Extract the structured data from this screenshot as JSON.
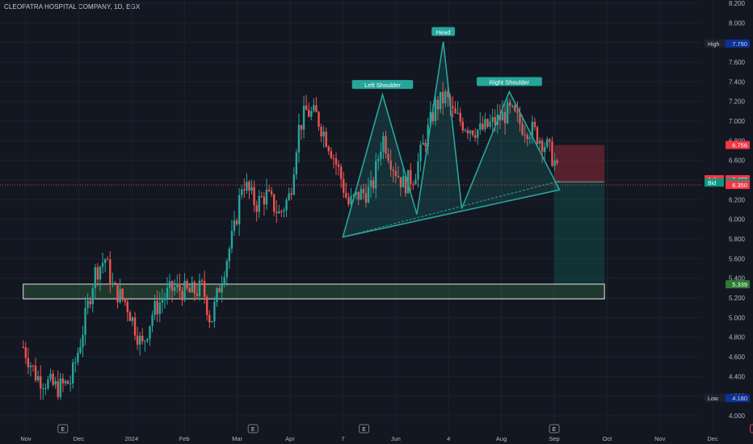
{
  "header": {
    "title": "CLEOPATRA HOSPITAL COMPANY, 1D, EGX"
  },
  "colors": {
    "up": "#26a69a",
    "down": "#ef5350",
    "bg": "#131722",
    "grid": "#1e222d",
    "box": "#5dbf7a",
    "label_teal": "#26a69a",
    "label_red": "#f23645"
  },
  "chart_data": {
    "type": "candlestick",
    "title": "CLEOPATRA HOSPITAL COMPANY, 1D, EGX",
    "ylim": [
      3.95,
      8.25
    ],
    "y_ticks": [
      "8.200",
      "8.000",
      "7.800",
      "7.600",
      "7.400",
      "7.200",
      "7.000",
      "6.800",
      "6.600",
      "6.400",
      "6.200",
      "6.000",
      "5.800",
      "5.600",
      "5.400",
      "5.200",
      "5.000",
      "4.800",
      "4.600",
      "4.400",
      "4.200",
      "4.000"
    ],
    "x_ticks": [
      "Nov",
      "Dec",
      "2024",
      "Feb",
      "Mar",
      "Apr",
      "7",
      "Jun",
      "4",
      "Aug",
      "Sep",
      "Oct",
      "Nov",
      "Dec"
    ],
    "event_markers": [
      {
        "label": "E",
        "x_month": 0.7,
        "color": "neutral"
      },
      {
        "label": "E",
        "x_month": 4.3,
        "color": "neutral"
      },
      {
        "label": "E",
        "x_month": 6.4,
        "color": "neutral"
      },
      {
        "label": "E",
        "x_month": 10.0,
        "color": "neutral"
      },
      {
        "label": "E",
        "x_month": 13.8,
        "color": "red"
      }
    ],
    "price_labels": [
      {
        "label": "High",
        "value": "7.790",
        "kind": "stat"
      },
      {
        "label": "",
        "value": "6.756",
        "kind": "red"
      },
      {
        "label": "",
        "value": "6.401",
        "kind": "gray"
      },
      {
        "label": "Ask",
        "value": "6.400",
        "kind": "red"
      },
      {
        "label": "Bid",
        "value": "6.390",
        "kind": "teal"
      },
      {
        "label": "",
        "value": "6.350",
        "kind": "red"
      },
      {
        "label": "",
        "value": "5.339",
        "kind": "green"
      },
      {
        "label": "Low",
        "value": "4.180",
        "kind": "stat"
      }
    ],
    "pattern": {
      "labels": [
        "Left Shoulder",
        "Head",
        "Right Shoulder"
      ],
      "points": [
        {
          "m": 6.0,
          "v": 5.82
        },
        {
          "m": 6.75,
          "v": 7.27
        },
        {
          "m": 7.4,
          "v": 6.05
        },
        {
          "m": 7.9,
          "v": 7.81
        },
        {
          "m": 8.25,
          "v": 6.11
        },
        {
          "m": 9.15,
          "v": 7.3
        },
        {
          "m": 10.1,
          "v": 6.3
        }
      ],
      "neckline": [
        {
          "m": 6.0,
          "v": 5.82
        },
        {
          "m": 10.1,
          "v": 6.39
        }
      ]
    },
    "support_zone": {
      "m0": -0.05,
      "m1": 10.95,
      "v_top": 5.34,
      "v_bottom": 5.19
    },
    "position": {
      "m0": 10.0,
      "m1": 10.95,
      "entry": 6.38,
      "stop": 6.756,
      "target": 5.339
    },
    "anchors": [
      {
        "m": -0.05,
        "v": 4.7
      },
      {
        "m": 0.2,
        "v": 4.4
      },
      {
        "m": 0.6,
        "v": 4.28
      },
      {
        "m": 0.85,
        "v": 4.35
      },
      {
        "m": 1.05,
        "v": 4.8
      },
      {
        "m": 1.3,
        "v": 5.45
      },
      {
        "m": 1.5,
        "v": 5.6
      },
      {
        "m": 1.65,
        "v": 5.3
      },
      {
        "m": 1.9,
        "v": 5.15
      },
      {
        "m": 2.2,
        "v": 4.7
      },
      {
        "m": 2.4,
        "v": 5.05
      },
      {
        "m": 2.6,
        "v": 5.2
      },
      {
        "m": 2.8,
        "v": 5.3
      },
      {
        "m": 3.1,
        "v": 5.25
      },
      {
        "m": 3.35,
        "v": 5.3
      },
      {
        "m": 3.5,
        "v": 4.95
      },
      {
        "m": 3.7,
        "v": 5.4
      },
      {
        "m": 3.95,
        "v": 5.9
      },
      {
        "m": 4.1,
        "v": 6.4
      },
      {
        "m": 4.35,
        "v": 6.15
      },
      {
        "m": 4.55,
        "v": 6.25
      },
      {
        "m": 4.8,
        "v": 6.05
      },
      {
        "m": 5.0,
        "v": 6.25
      },
      {
        "m": 5.15,
        "v": 6.9
      },
      {
        "m": 5.3,
        "v": 7.1
      },
      {
        "m": 5.5,
        "v": 7.05
      },
      {
        "m": 5.75,
        "v": 6.75
      },
      {
        "m": 5.95,
        "v": 6.45
      },
      {
        "m": 6.1,
        "v": 6.15
      },
      {
        "m": 6.3,
        "v": 6.25
      },
      {
        "m": 6.55,
        "v": 6.3
      },
      {
        "m": 6.75,
        "v": 6.85
      },
      {
        "m": 6.95,
        "v": 6.55
      },
      {
        "m": 7.15,
        "v": 6.35
      },
      {
        "m": 7.35,
        "v": 6.45
      },
      {
        "m": 7.55,
        "v": 6.8
      },
      {
        "m": 7.75,
        "v": 7.15
      },
      {
        "m": 7.95,
        "v": 7.25
      },
      {
        "m": 8.1,
        "v": 7.05
      },
      {
        "m": 8.35,
        "v": 6.95
      },
      {
        "m": 8.6,
        "v": 6.9
      },
      {
        "m": 8.9,
        "v": 7.0
      },
      {
        "m": 9.15,
        "v": 7.1
      },
      {
        "m": 9.4,
        "v": 6.95
      },
      {
        "m": 9.6,
        "v": 6.9
      },
      {
        "m": 9.85,
        "v": 6.75
      },
      {
        "m": 10.0,
        "v": 6.6
      },
      {
        "m": 10.1,
        "v": 6.38
      }
    ]
  }
}
